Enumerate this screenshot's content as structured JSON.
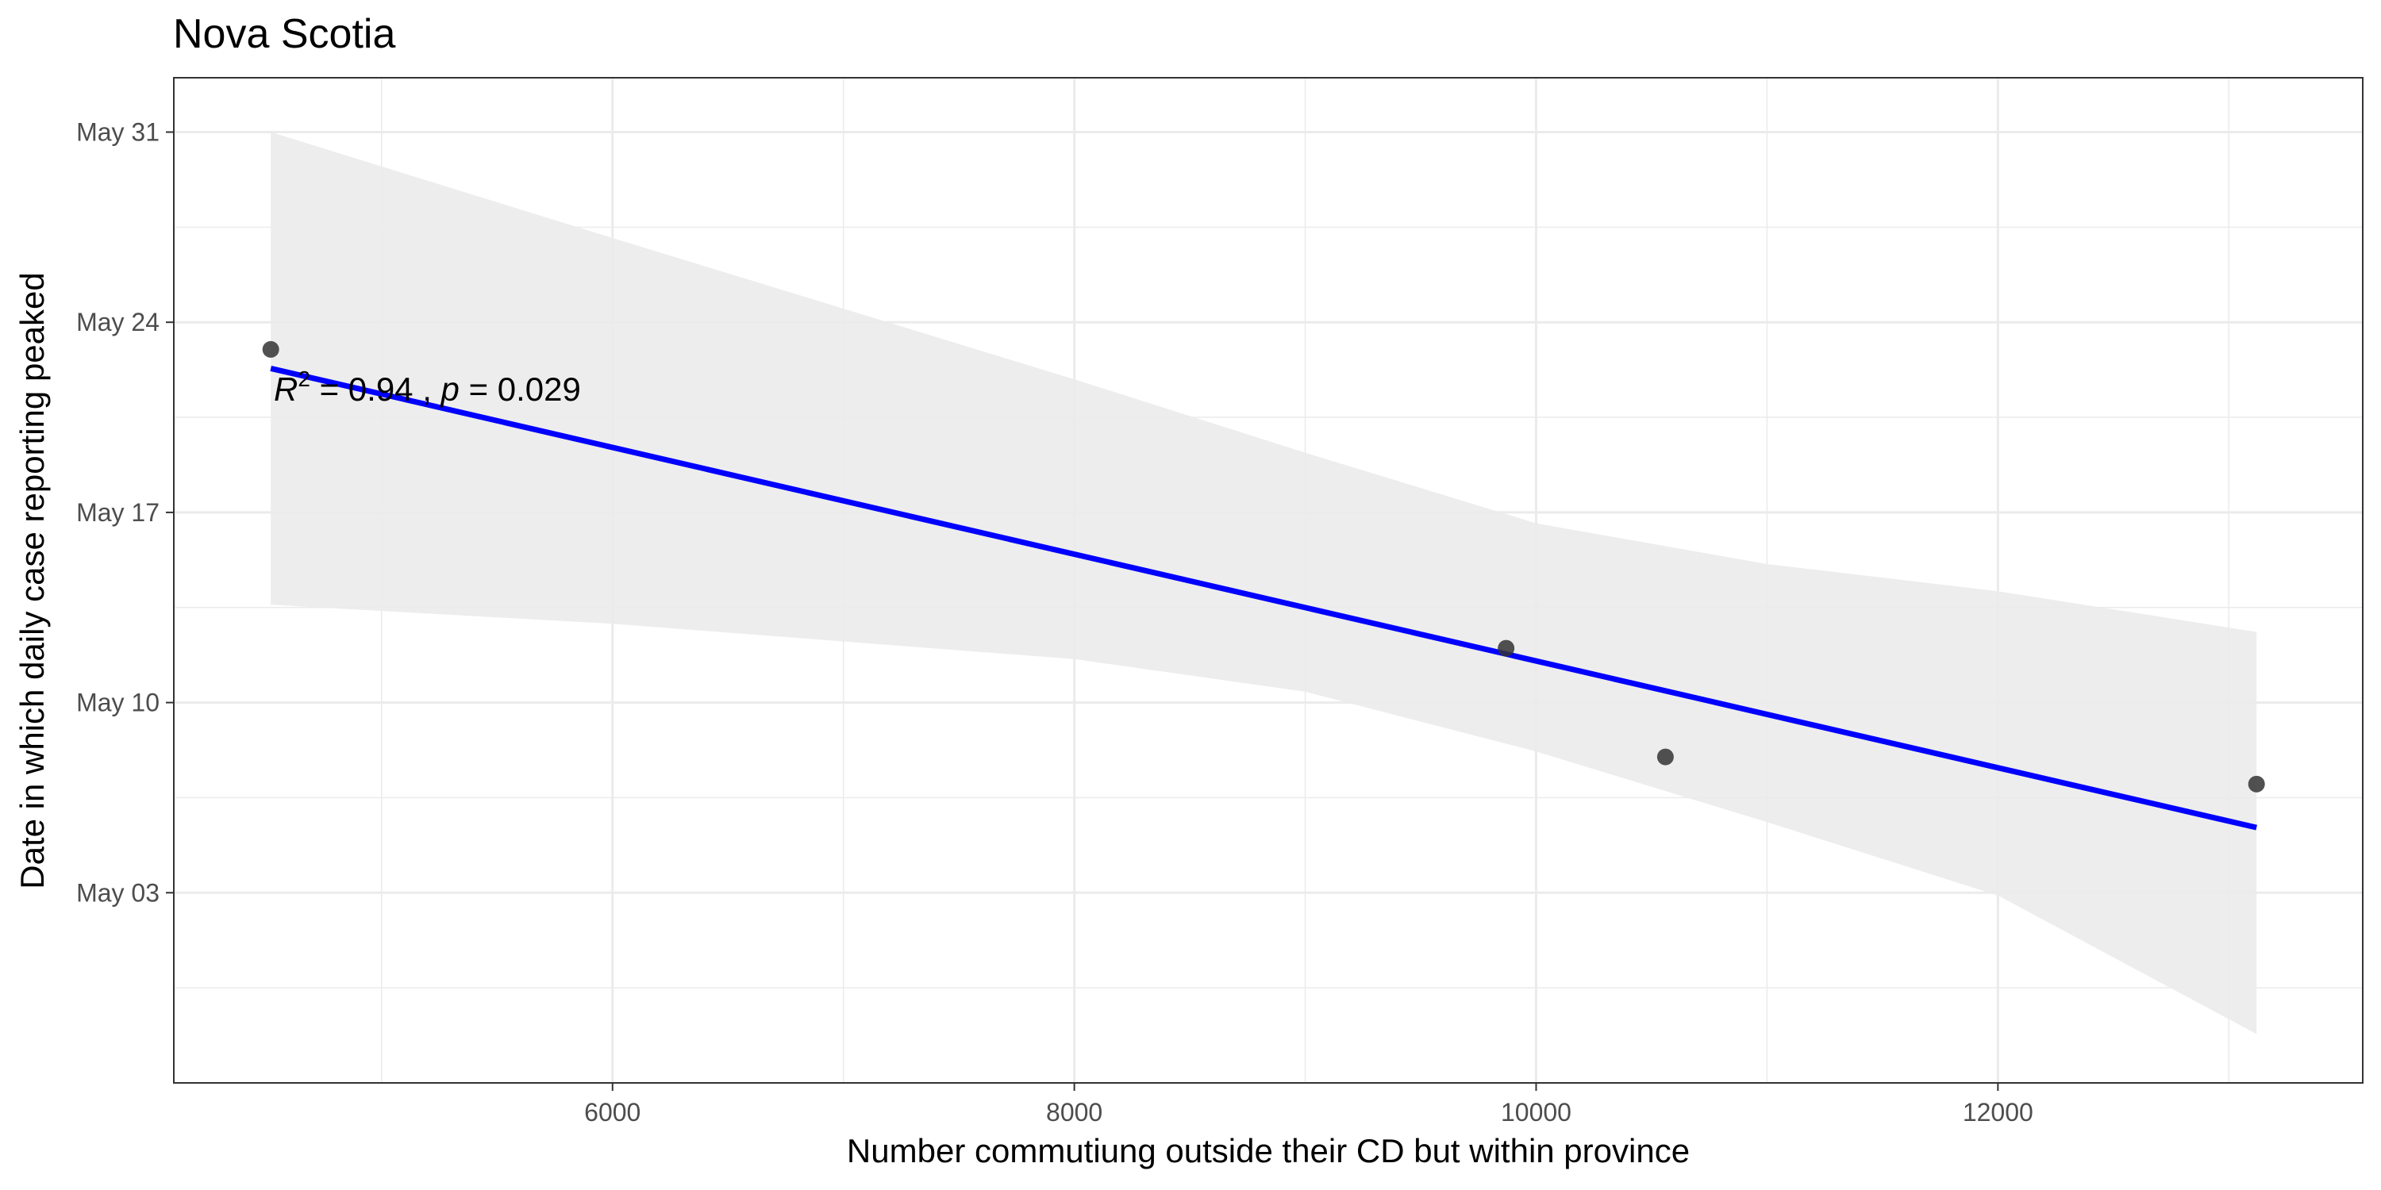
{
  "chart_data": {
    "type": "scatter",
    "title": "Nova Scotia",
    "xlabel": "Number commutiung outside their CD but within province",
    "ylabel": "Date in which daily case reporting peaked",
    "x_ticks": [
      6000,
      8000,
      10000,
      12000
    ],
    "y_ticks": [
      "May 03",
      "May 10",
      "May 17",
      "May 24",
      "May 31"
    ],
    "xlim": [
      4100,
      13580
    ],
    "ylim": [
      "2020-04-26",
      "2020-06-02"
    ],
    "points": [
      {
        "x": 4520,
        "y": "2020-05-23"
      },
      {
        "x": 9870,
        "y": "2020-05-12"
      },
      {
        "x": 10560,
        "y": "2020-05-08"
      },
      {
        "x": 13120,
        "y": "2020-05-07"
      }
    ],
    "fit": {
      "x": [
        4520,
        13120
      ],
      "y": [
        "2020-05-22.3",
        "2020-05-05.4"
      ],
      "color": "#0000ff"
    },
    "confidence_band": {
      "x": [
        4520,
        6000,
        8000,
        9000,
        10000,
        11000,
        12000,
        13120
      ],
      "upper": [
        "2020-05-31",
        "2020-05-27.1",
        "2020-05-21.9",
        "2020-05-19.2",
        "2020-05-16.6",
        "2020-05-15.1",
        "2020-05-14.1",
        "2020-05-12.6"
      ],
      "lower": [
        "2020-05-13.6",
        "2020-05-12.9",
        "2020-05-11.6",
        "2020-05-10.4",
        "2020-05-08.2",
        "2020-05-05.6",
        "2020-05-02.9",
        "2020-04-27.8"
      ],
      "color": "#ebebeb"
    },
    "annotation": {
      "r_symbol": "R",
      "r_exponent": "2",
      "r_value": " = 0.94 , ",
      "p_symbol": "p",
      "p_value": " = 0.029"
    },
    "grid": true
  }
}
